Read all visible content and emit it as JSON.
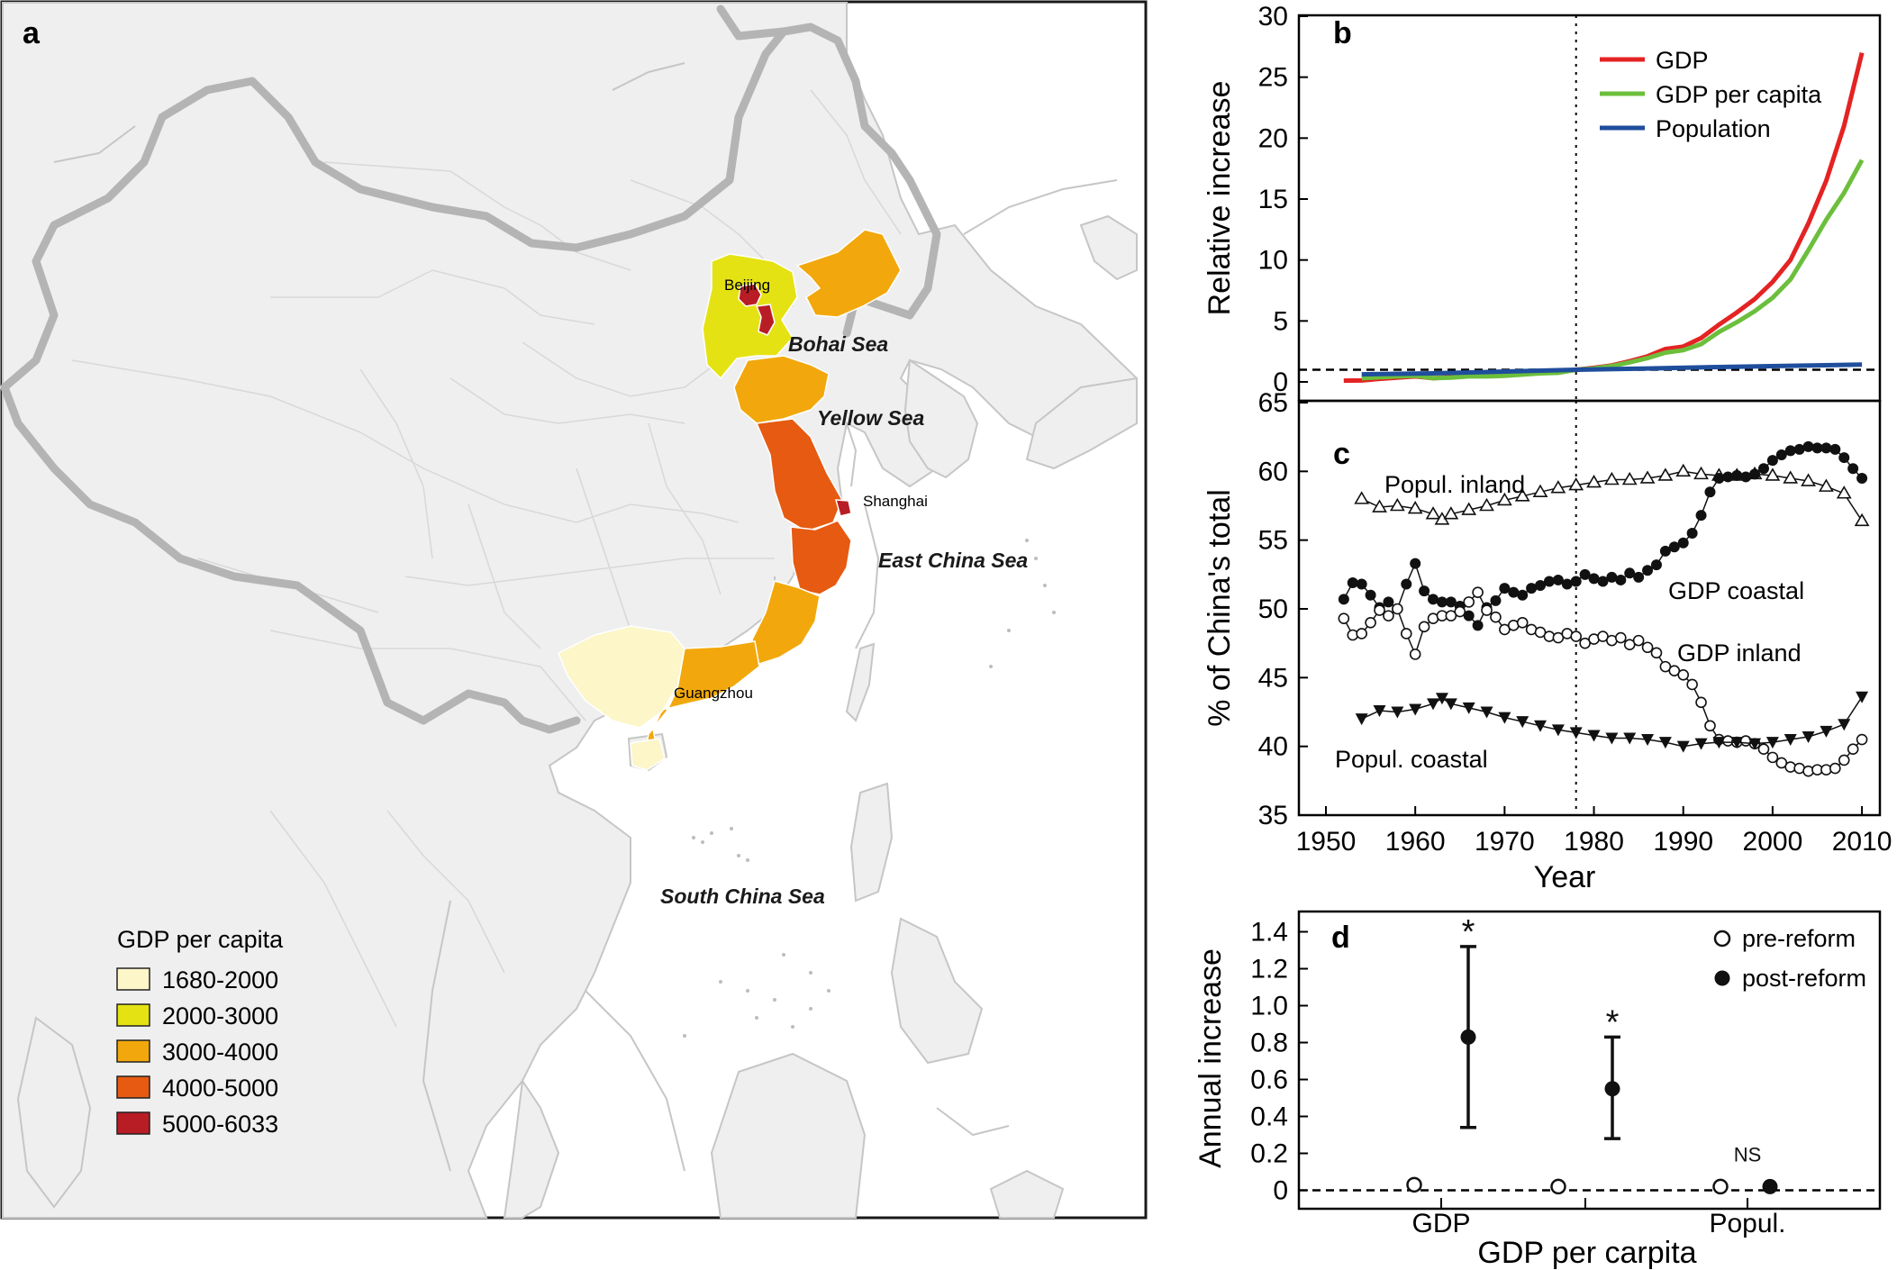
{
  "panel_labels": {
    "a": "a",
    "b": "b",
    "c": "c",
    "d": "d"
  },
  "map": {
    "seas": [
      "Bohai Sea",
      "Yellow Sea",
      "East China Sea",
      "South China Sea"
    ],
    "cities": [
      "Beijing",
      "Shanghai",
      "Guangzhou"
    ],
    "legend": {
      "title": "GDP per capita",
      "items": [
        {
          "label": "1680-2000",
          "color": "#fcf6c8"
        },
        {
          "label": "2000-3000",
          "color": "#e5e214"
        },
        {
          "label": "3000-4000",
          "color": "#f2a80c"
        },
        {
          "label": "4000-5000",
          "color": "#e65a12"
        },
        {
          "label": "5000-6033",
          "color": "#b81d25"
        }
      ]
    }
  },
  "chart_data": [
    {
      "panel": "b",
      "type": "line",
      "ylabel": "Relative increase",
      "xlim": [
        1950,
        2011
      ],
      "ylim": [
        0,
        30
      ],
      "yticks": [
        "0",
        "5",
        "10",
        "15",
        "20",
        "25",
        "30"
      ],
      "reform_year": 1978,
      "reference_line_y": 1,
      "series": [
        {
          "name": "GDP",
          "color": "#e42323",
          "x": [
            1952,
            1954,
            1956,
            1958,
            1960,
            1962,
            1964,
            1966,
            1968,
            1970,
            1972,
            1974,
            1976,
            1978,
            1980,
            1982,
            1984,
            1986,
            1988,
            1990,
            1992,
            1994,
            1996,
            1998,
            2000,
            2002,
            2004,
            2006,
            2008,
            2010
          ],
          "y": [
            0.1,
            0.12,
            0.25,
            0.35,
            0.45,
            0.3,
            0.4,
            0.5,
            0.48,
            0.55,
            0.65,
            0.75,
            0.8,
            1.0,
            1.15,
            1.35,
            1.7,
            2.1,
            2.7,
            2.9,
            3.6,
            4.7,
            5.7,
            6.8,
            8.2,
            10.0,
            13.0,
            16.5,
            21.0,
            27.0
          ]
        },
        {
          "name": "GDP per capita",
          "color": "#6cbf3c",
          "x": [
            1954,
            1956,
            1958,
            1960,
            1962,
            1964,
            1966,
            1968,
            1970,
            1972,
            1974,
            1976,
            1978,
            1980,
            1982,
            1984,
            1986,
            1988,
            1990,
            1992,
            1994,
            1996,
            1998,
            2000,
            2002,
            2004,
            2006,
            2008,
            2010
          ],
          "y": [
            0.3,
            0.38,
            0.45,
            0.5,
            0.3,
            0.35,
            0.45,
            0.45,
            0.5,
            0.6,
            0.7,
            0.75,
            1.0,
            1.1,
            1.3,
            1.6,
            1.95,
            2.4,
            2.6,
            3.1,
            4.1,
            4.9,
            5.8,
            6.9,
            8.4,
            10.8,
            13.3,
            15.5,
            18.2
          ]
        },
        {
          "name": "Population",
          "color": "#1f4e9c",
          "x": [
            1954,
            1962,
            1970,
            1978,
            1986,
            1994,
            2002,
            2010
          ],
          "y": [
            0.62,
            0.7,
            0.85,
            1.0,
            1.1,
            1.22,
            1.32,
            1.42
          ]
        }
      ]
    },
    {
      "panel": "c",
      "type": "line",
      "xlabel": "Year",
      "ylabel": "% of China's total",
      "xlim": [
        1950,
        2011
      ],
      "ylim": [
        35,
        65
      ],
      "xticks": [
        "1950",
        "1960",
        "1970",
        "1980",
        "1990",
        "2000",
        "2010"
      ],
      "yticks": [
        "35",
        "40",
        "45",
        "50",
        "55",
        "60",
        "65"
      ],
      "reform_year": 1978,
      "series": [
        {
          "name": "Popul. inland",
          "marker": "open-triangle-up",
          "x": [
            1954,
            1956,
            1958,
            1960,
            1962,
            1963,
            1964,
            1966,
            1968,
            1970,
            1972,
            1974,
            1976,
            1978,
            1980,
            1982,
            1984,
            1986,
            1988,
            1990,
            1992,
            1994,
            1996,
            1998,
            2000,
            2002,
            2004,
            2006,
            2008,
            2010
          ],
          "y": [
            58.0,
            57.4,
            57.5,
            57.3,
            56.9,
            56.5,
            56.9,
            57.2,
            57.5,
            57.9,
            58.2,
            58.5,
            58.8,
            59.0,
            59.2,
            59.4,
            59.4,
            59.5,
            59.7,
            60.0,
            59.8,
            59.7,
            59.7,
            59.8,
            59.7,
            59.5,
            59.3,
            58.9,
            58.4,
            56.4
          ]
        },
        {
          "name": "GDP coastal",
          "marker": "filled-circle",
          "x": [
            1952,
            1953,
            1954,
            1955,
            1956,
            1957,
            1958,
            1959,
            1960,
            1961,
            1962,
            1963,
            1964,
            1965,
            1966,
            1967,
            1968,
            1969,
            1970,
            1971,
            1972,
            1973,
            1974,
            1975,
            1976,
            1977,
            1978,
            1979,
            1980,
            1981,
            1982,
            1983,
            1984,
            1985,
            1986,
            1987,
            1988,
            1989,
            1990,
            1991,
            1992,
            1993,
            1994,
            1995,
            1996,
            1997,
            1998,
            1999,
            2000,
            2001,
            2002,
            2003,
            2004,
            2005,
            2006,
            2007,
            2008,
            2009,
            2010
          ],
          "y": [
            50.7,
            51.9,
            51.8,
            51.0,
            50.1,
            50.5,
            50.0,
            51.8,
            53.3,
            51.3,
            50.7,
            50.5,
            50.5,
            50.2,
            49.5,
            48.8,
            50.1,
            50.6,
            51.5,
            51.2,
            51.0,
            51.5,
            51.7,
            52.0,
            52.1,
            51.8,
            52.0,
            52.5,
            52.2,
            52.0,
            52.3,
            52.1,
            52.6,
            52.3,
            52.8,
            53.2,
            54.2,
            54.5,
            54.8,
            55.5,
            56.8,
            58.5,
            59.5,
            59.6,
            59.7,
            59.6,
            59.8,
            60.2,
            60.8,
            61.2,
            61.5,
            61.6,
            61.8,
            61.7,
            61.7,
            61.6,
            61.0,
            60.2,
            59.5
          ]
        },
        {
          "name": "GDP inland",
          "marker": "open-circle",
          "x": [
            1952,
            1953,
            1954,
            1955,
            1956,
            1957,
            1958,
            1959,
            1960,
            1961,
            1962,
            1963,
            1964,
            1965,
            1966,
            1967,
            1968,
            1969,
            1970,
            1971,
            1972,
            1973,
            1974,
            1975,
            1976,
            1977,
            1978,
            1979,
            1980,
            1981,
            1982,
            1983,
            1984,
            1985,
            1986,
            1987,
            1988,
            1989,
            1990,
            1991,
            1992,
            1993,
            1994,
            1995,
            1996,
            1997,
            1998,
            1999,
            2000,
            2001,
            2002,
            2003,
            2004,
            2005,
            2006,
            2007,
            2008,
            2009,
            2010
          ],
          "y": [
            49.3,
            48.1,
            48.2,
            49.0,
            49.9,
            49.5,
            50.0,
            48.2,
            46.7,
            48.7,
            49.3,
            49.5,
            49.5,
            49.8,
            50.5,
            51.2,
            49.9,
            49.4,
            48.5,
            48.8,
            49.0,
            48.5,
            48.3,
            48.0,
            47.9,
            48.2,
            48.0,
            47.5,
            47.8,
            48.0,
            47.7,
            47.9,
            47.4,
            47.7,
            47.2,
            46.8,
            45.8,
            45.5,
            45.2,
            44.5,
            43.2,
            41.5,
            40.5,
            40.4,
            40.3,
            40.4,
            40.2,
            39.8,
            39.2,
            38.8,
            38.5,
            38.4,
            38.2,
            38.3,
            38.3,
            38.4,
            39.0,
            39.8,
            40.5
          ]
        },
        {
          "name": "Popul. coastal",
          "marker": "filled-triangle-down",
          "x": [
            1954,
            1956,
            1958,
            1960,
            1962,
            1963,
            1964,
            1966,
            1968,
            1970,
            1972,
            1974,
            1976,
            1978,
            1980,
            1982,
            1984,
            1986,
            1988,
            1990,
            1992,
            1994,
            1996,
            1998,
            2000,
            2002,
            2004,
            2006,
            2008,
            2010
          ],
          "y": [
            42.0,
            42.6,
            42.5,
            42.7,
            43.1,
            43.5,
            43.1,
            42.8,
            42.5,
            42.1,
            41.8,
            41.5,
            41.2,
            41.0,
            40.8,
            40.6,
            40.6,
            40.5,
            40.3,
            40.0,
            40.2,
            40.3,
            40.3,
            40.2,
            40.3,
            40.5,
            40.7,
            41.1,
            41.6,
            43.6
          ]
        }
      ]
    },
    {
      "panel": "d",
      "type": "scatter",
      "xlabel": "GDP per carpita",
      "ylabel": "Annual increase",
      "ylim": [
        -0.1,
        1.5
      ],
      "yticks": [
        "0",
        "0.2",
        "0.4",
        "0.6",
        "0.8",
        "1.0",
        "1.2",
        "1.4"
      ],
      "categories": [
        "GDP",
        "",
        "Popul."
      ],
      "series": [
        {
          "name": "pre-reform",
          "marker": "open-circle",
          "values": [
            0.03,
            0.02,
            0.02
          ]
        },
        {
          "name": "post-reform",
          "marker": "filled-circle",
          "values": [
            0.83,
            0.55,
            0.02
          ],
          "error_low": [
            0.34,
            0.28,
            null
          ],
          "error_high": [
            1.32,
            0.83,
            null
          ]
        }
      ],
      "annotations": [
        "*",
        "*",
        "NS"
      ]
    }
  ]
}
